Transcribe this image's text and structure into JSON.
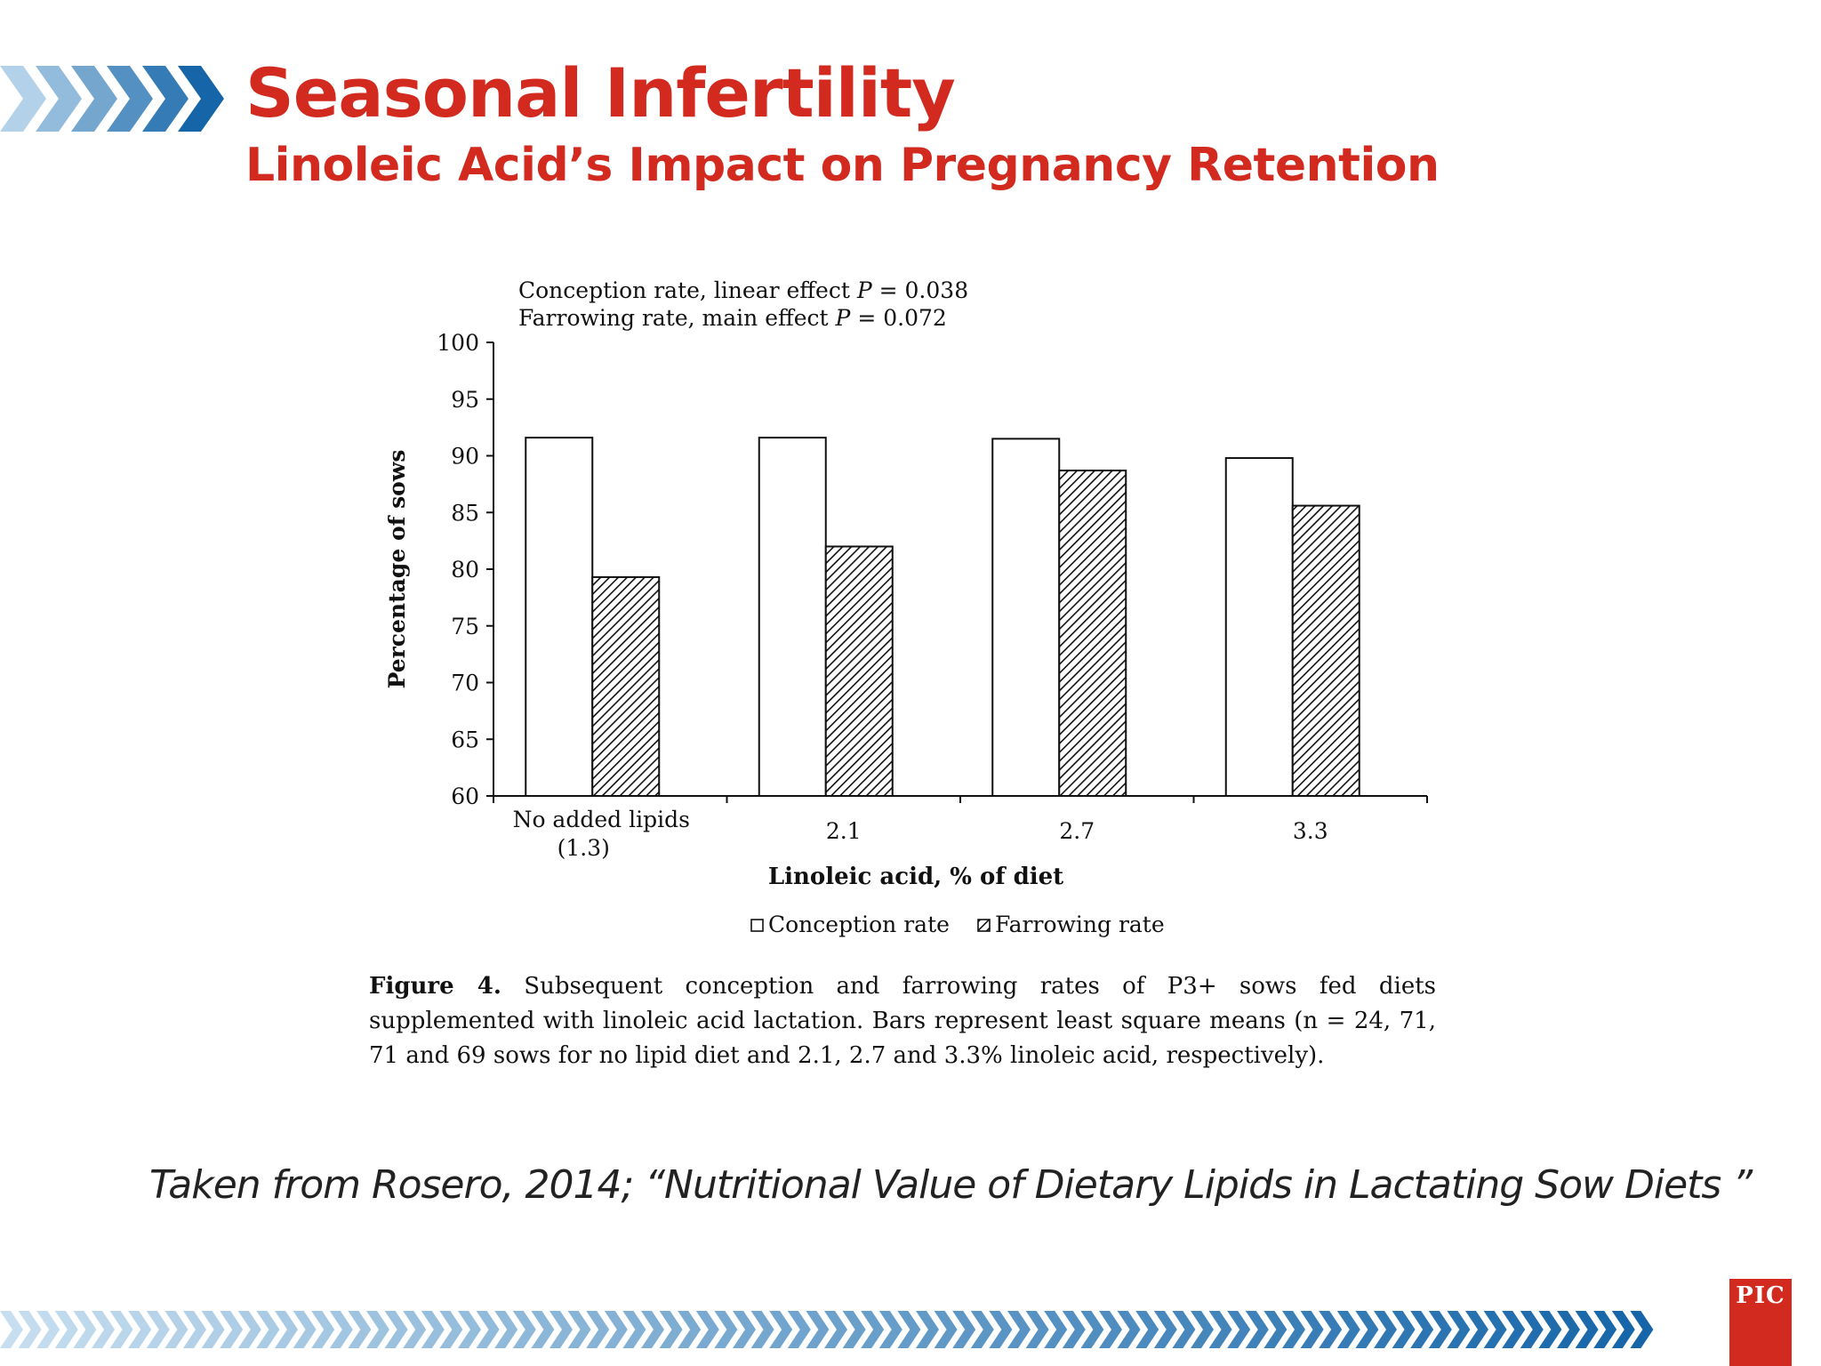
{
  "slide": {
    "title": "Seasonal Infertility",
    "subtitle": "Linoleic Acid’s Impact on Pregnancy Retention",
    "caption_label": "Figure 4.",
    "caption_text": " Subsequent conception and farrowing rates of P3+ sows fed diets supplemented with linoleic acid lactation. Bars represent least square means (n = 24, 71, 71 and 69 sows for no lipid diet and 2.1, 2.7 and 3.3% linoleic acid, respectively).",
    "source": "Taken from Rosero, 2014; “Nutritional Value of Dietary Lipids in Lactating Sow Diets ”",
    "logo_text": "PIC",
    "colors": {
      "accent_red": "#d32a20",
      "chevron_dark": "#1565a8",
      "chevron_light": "#9cc7e6"
    }
  },
  "chart_data": {
    "type": "bar",
    "categories": [
      [
        "No added lipids",
        "(1.3)"
      ],
      [
        "2.1"
      ],
      [
        "2.7"
      ],
      [
        "3.3"
      ]
    ],
    "series": [
      {
        "name": "Conception rate",
        "values": [
          91.6,
          91.6,
          91.5,
          89.8
        ],
        "fill": "white"
      },
      {
        "name": "Farrowing rate",
        "values": [
          79.3,
          82.0,
          88.7,
          85.6
        ],
        "fill": "hatched"
      }
    ],
    "annotations": [
      {
        "prefix": "Conception rate, linear effect ",
        "p_label": "P",
        "suffix": " = 0.038"
      },
      {
        "prefix": "Farrowing rate, main effect ",
        "p_label": "P",
        "suffix": " = 0.072"
      }
    ],
    "xlabel": "Linoleic acid, % of diet",
    "ylabel": "Percentage of sows",
    "ylim": [
      60,
      100
    ],
    "yticks": [
      60,
      65,
      70,
      75,
      80,
      85,
      90,
      95,
      100
    ],
    "legend": "bottom-center",
    "grid": false
  }
}
